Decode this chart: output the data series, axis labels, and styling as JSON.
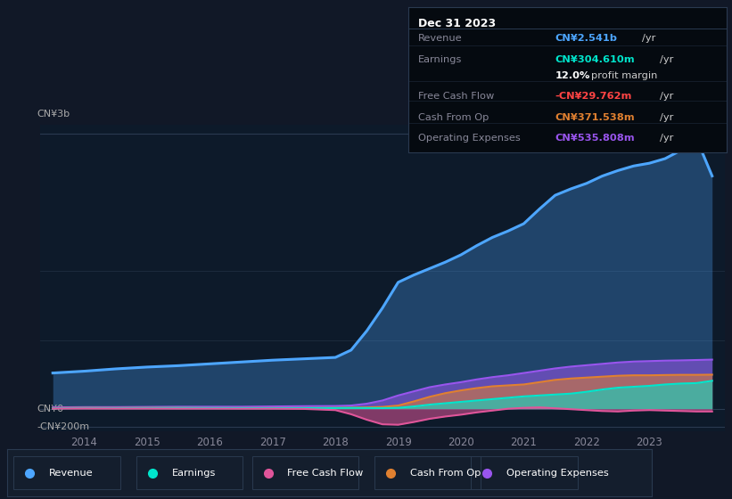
{
  "background_color": "#111827",
  "plot_bg_color": "#0d1a2a",
  "title_box": {
    "date": "Dec 31 2023",
    "rows": [
      {
        "label": "Revenue",
        "value": "CN¥2.541b",
        "value_color": "#4da6ff",
        "suffix": " /yr",
        "extra": null
      },
      {
        "label": "Earnings",
        "value": "CN¥304.610m",
        "value_color": "#00e5cc",
        "suffix": " /yr",
        "extra": "12.0% profit margin"
      },
      {
        "label": "Free Cash Flow",
        "value": "-CN¥29.762m",
        "value_color": "#ff4444",
        "suffix": " /yr",
        "extra": null
      },
      {
        "label": "Cash From Op",
        "value": "CN¥371.538m",
        "value_color": "#e08030",
        "suffix": " /yr",
        "extra": null
      },
      {
        "label": "Operating Expenses",
        "value": "CN¥535.808m",
        "value_color": "#9955ee",
        "suffix": " /yr",
        "extra": null
      }
    ]
  },
  "y_label_top": "CN¥3b",
  "y_label_zero": "CN¥0",
  "y_label_neg": "-CN¥200m",
  "x_ticks": [
    "2014",
    "2015",
    "2016",
    "2017",
    "2018",
    "2019",
    "2020",
    "2021",
    "2022",
    "2023"
  ],
  "x_tick_vals": [
    2014,
    2015,
    2016,
    2017,
    2018,
    2019,
    2020,
    2021,
    2022,
    2023
  ],
  "ylim": [
    -250,
    3100
  ],
  "xlim": [
    2013.3,
    2024.2
  ],
  "legend": [
    {
      "label": "Revenue",
      "color": "#4da6ff"
    },
    {
      "label": "Earnings",
      "color": "#00e5cc"
    },
    {
      "label": "Free Cash Flow",
      "color": "#e0559a"
    },
    {
      "label": "Cash From Op",
      "color": "#e08030"
    },
    {
      "label": "Operating Expenses",
      "color": "#9955ee"
    }
  ],
  "series": {
    "x": [
      2013.5,
      2014.0,
      2014.5,
      2015.0,
      2015.5,
      2016.0,
      2016.5,
      2017.0,
      2017.5,
      2018.0,
      2018.25,
      2018.5,
      2018.75,
      2019.0,
      2019.25,
      2019.5,
      2019.75,
      2020.0,
      2020.25,
      2020.5,
      2020.75,
      2021.0,
      2021.25,
      2021.5,
      2021.75,
      2022.0,
      2022.25,
      2022.5,
      2022.75,
      2023.0,
      2023.25,
      2023.5,
      2023.75,
      2024.0
    ],
    "revenue": [
      390,
      410,
      435,
      455,
      470,
      490,
      510,
      530,
      545,
      560,
      640,
      850,
      1100,
      1380,
      1460,
      1530,
      1600,
      1680,
      1780,
      1870,
      1940,
      2020,
      2180,
      2330,
      2400,
      2460,
      2540,
      2600,
      2650,
      2680,
      2730,
      2820,
      2950,
      2541
    ],
    "earnings": [
      5,
      8,
      7,
      8,
      9,
      8,
      7,
      6,
      7,
      8,
      9,
      8,
      7,
      10,
      25,
      45,
      60,
      75,
      90,
      105,
      120,
      135,
      145,
      155,
      165,
      185,
      210,
      230,
      240,
      250,
      265,
      275,
      280,
      305
    ],
    "fcf": [
      2,
      3,
      2,
      2,
      1,
      1,
      0,
      0,
      -2,
      -15,
      -60,
      -120,
      -170,
      -175,
      -145,
      -110,
      -85,
      -65,
      -40,
      -20,
      0,
      10,
      15,
      5,
      -5,
      -15,
      -25,
      -30,
      -20,
      -15,
      -20,
      -25,
      -30,
      -30
    ],
    "cash_from_op": [
      8,
      10,
      9,
      10,
      10,
      8,
      8,
      8,
      8,
      10,
      12,
      15,
      20,
      35,
      80,
      130,
      170,
      200,
      225,
      245,
      255,
      265,
      290,
      315,
      330,
      340,
      350,
      360,
      365,
      365,
      368,
      370,
      370,
      372
    ],
    "op_expenses": [
      15,
      18,
      18,
      20,
      22,
      22,
      22,
      25,
      28,
      30,
      35,
      55,
      90,
      145,
      190,
      235,
      265,
      290,
      320,
      345,
      365,
      390,
      415,
      440,
      460,
      475,
      490,
      505,
      515,
      520,
      525,
      528,
      532,
      536
    ]
  }
}
